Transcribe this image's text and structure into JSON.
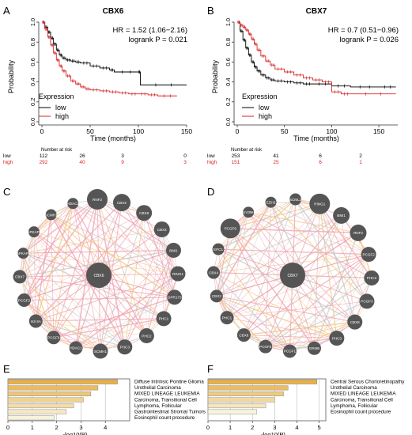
{
  "panels": {
    "A": {
      "letter": "A",
      "title": "CBX6",
      "hr": "HR = 1.52 (1.06−2.16)",
      "logrank": "logrank P = 0.021",
      "legend_title": "Expression",
      "legend_low": "low",
      "legend_high": "high",
      "risk_header": "Number at risk",
      "risk_low_label": "low",
      "risk_high_label": "high",
      "risk_low": [
        "112",
        "26",
        "3",
        "0"
      ],
      "risk_high": [
        "292",
        "40",
        "9",
        "3"
      ]
    },
    "B": {
      "letter": "B",
      "title": "CBX7",
      "hr": "HR = 0.7 (0.51−0.96)",
      "logrank": "logrank P = 0.026",
      "legend_title": "Expression",
      "legend_low": "low",
      "legend_high": "high",
      "risk_header": "Number at risk",
      "risk_low_label": "low",
      "risk_high_label": "high",
      "risk_low": [
        "253",
        "41",
        "6",
        "2"
      ],
      "risk_high": [
        "151",
        "25",
        "6",
        "1"
      ]
    },
    "C": {
      "letter": "C",
      "center": "CBX6",
      "nodes": [
        "RNF2",
        "CBX2",
        "CBX8",
        "CBX4",
        "BMI1",
        "RING1",
        "GPR173",
        "PHC1",
        "PHC2",
        "PHC3",
        "SCMH1",
        "HDAC1",
        "PCGF6",
        "H3-3A",
        "PCGF2",
        "CBX7",
        "MAPKAPK2",
        "MAPKAPK3",
        "SCMH1",
        "HDAC2"
      ],
      "node_sizes": [
        1.3,
        1.1,
        1.0,
        1.0,
        0.95,
        0.95,
        0.95,
        0.95,
        0.95,
        0.95,
        0.95,
        0.85,
        0.85,
        0.85,
        0.85,
        0.85,
        0.7,
        0.7,
        0.7,
        0.7
      ]
    },
    "D": {
      "letter": "D",
      "center": "CBX7",
      "nodes": [
        "RING1",
        "BMI1",
        "RNF2",
        "PCGF2",
        "PHC2",
        "PCGF3",
        "CBX8",
        "PHC3",
        "GRM6",
        "PCGF1",
        "PCGF5",
        "CBX6",
        "PHC1",
        "CBX2",
        "CBX4",
        "EPC1",
        "PCGF6",
        "SUV39H1",
        "EZH2",
        "SCML2"
      ],
      "node_sizes": [
        1.3,
        1.05,
        1.05,
        0.95,
        0.95,
        0.95,
        0.95,
        0.95,
        0.85,
        0.85,
        0.85,
        0.85,
        0.85,
        0.8,
        0.8,
        0.75,
        1.25,
        0.7,
        0.7,
        0.75
      ]
    },
    "E": {
      "letter": "E",
      "xlabel": "-log10(P)",
      "ticks": [
        "0",
        "1",
        "2",
        "3",
        "4"
      ],
      "terms": [
        "Diffuse Intrinsic Pontine Glioma",
        "Urothelial Carcinoma",
        "MIXED LINEAGE LEUKEMIA",
        "Carcinoma, Transitional Cell",
        "Lymphoma, Follicular",
        "Gastrointestinal Stromal Tumors",
        "Eosinophil count procedure"
      ]
    },
    "F": {
      "letter": "F",
      "xlabel": "-log10(P)",
      "ticks": [
        "0",
        "1",
        "2",
        "3",
        "4",
        "5"
      ],
      "terms": [
        "Central Serous Chorioretinopathy",
        "Urothelial Carcinoma",
        "MIXED LINEAGE LEUKEMIA",
        "Carcinoma, Transitional Cell",
        "Lymphoma, Follicular",
        "Eosinophil count procedure"
      ]
    }
  },
  "colors": {
    "low": "#000000",
    "high": "#d62728",
    "node": "#555555",
    "bar_dark": "#e8b04a",
    "bar_light": "#f7f3dc",
    "edge_pink": "#f0a0ad",
    "edge_orange": "#f2c580",
    "edge_grey": "#c9c9c9"
  },
  "chart_data": [
    {
      "type": "line",
      "panel": "A",
      "title": "CBX6",
      "xlabel": "Time (months)",
      "ylabel": "Probability",
      "xlim": [
        0,
        150
      ],
      "ylim": [
        0,
        1.0
      ],
      "xticks": [
        0,
        50,
        100,
        150
      ],
      "yticks": [
        0.0,
        0.2,
        0.4,
        0.6,
        0.8,
        1.0
      ],
      "series": [
        {
          "name": "low",
          "x": [
            0,
            3,
            6,
            9,
            12,
            15,
            18,
            21,
            25,
            30,
            35,
            40,
            50,
            60,
            70,
            75,
            100,
            102,
            150
          ],
          "y": [
            1.0,
            0.95,
            0.9,
            0.84,
            0.78,
            0.72,
            0.67,
            0.64,
            0.62,
            0.61,
            0.6,
            0.59,
            0.56,
            0.54,
            0.52,
            0.5,
            0.5,
            0.37,
            0.37
          ]
        },
        {
          "name": "high",
          "x": [
            0,
            3,
            6,
            9,
            12,
            15,
            18,
            21,
            25,
            30,
            35,
            40,
            45,
            50,
            60,
            70,
            80,
            90,
            100,
            110,
            120,
            140
          ],
          "y": [
            1.0,
            0.93,
            0.85,
            0.77,
            0.69,
            0.62,
            0.56,
            0.51,
            0.46,
            0.41,
            0.38,
            0.35,
            0.33,
            0.32,
            0.31,
            0.3,
            0.29,
            0.28,
            0.28,
            0.27,
            0.26,
            0.26
          ]
        }
      ]
    },
    {
      "type": "line",
      "panel": "B",
      "title": "CBX7",
      "xlabel": "Time (months)",
      "ylabel": "Probability",
      "xlim": [
        0,
        170
      ],
      "ylim": [
        0,
        1.0
      ],
      "xticks": [
        0,
        50,
        100,
        150
      ],
      "yticks": [
        0.0,
        0.2,
        0.4,
        0.6,
        0.8,
        1.0
      ],
      "series": [
        {
          "name": "low",
          "x": [
            0,
            3,
            6,
            9,
            12,
            15,
            18,
            21,
            25,
            30,
            35,
            40,
            50,
            60,
            70,
            80,
            100,
            120,
            150,
            168
          ],
          "y": [
            1.0,
            0.91,
            0.82,
            0.74,
            0.67,
            0.6,
            0.55,
            0.51,
            0.47,
            0.44,
            0.42,
            0.41,
            0.4,
            0.39,
            0.38,
            0.38,
            0.36,
            0.35,
            0.35,
            0.35
          ]
        },
        {
          "name": "high",
          "x": [
            0,
            3,
            6,
            9,
            12,
            15,
            18,
            21,
            25,
            30,
            35,
            40,
            50,
            60,
            70,
            80,
            90,
            100,
            110,
            120,
            168
          ],
          "y": [
            1.0,
            0.97,
            0.95,
            0.92,
            0.88,
            0.83,
            0.78,
            0.72,
            0.66,
            0.61,
            0.57,
            0.53,
            0.5,
            0.47,
            0.44,
            0.42,
            0.4,
            0.3,
            0.28,
            0.28,
            0.28
          ]
        }
      ]
    },
    {
      "type": "bar",
      "panel": "E",
      "orientation": "horizontal",
      "xlabel": "-log10(P)",
      "xlim": [
        0,
        5
      ],
      "xticks": [
        0,
        1,
        2,
        3,
        4
      ],
      "categories": [
        "Diffuse Intrinsic Pontine Glioma",
        "Urothelial Carcinoma",
        "MIXED LINEAGE LEUKEMIA",
        "Carcinoma, Transitional Cell",
        "Lymphoma, Follicular",
        "Gastrointestinal Stromal Tumors",
        "Eosinophil count procedure"
      ],
      "values": [
        4.5,
        3.7,
        3.4,
        3.1,
        2.7,
        2.4,
        1.9
      ]
    },
    {
      "type": "bar",
      "panel": "F",
      "orientation": "horizontal",
      "xlabel": "-log10(P)",
      "xlim": [
        0,
        5.3
      ],
      "xticks": [
        0,
        1,
        2,
        3,
        4,
        5
      ],
      "categories": [
        "Central Serous Chorioretinopathy",
        "Urothelial Carcinoma",
        "MIXED LINEAGE LEUKEMIA",
        "Carcinoma, Transitional Cell",
        "Lymphoma, Follicular",
        "Eosinophil count procedure"
      ],
      "values": [
        4.9,
        3.6,
        3.4,
        3.0,
        2.6,
        2.2
      ]
    }
  ]
}
